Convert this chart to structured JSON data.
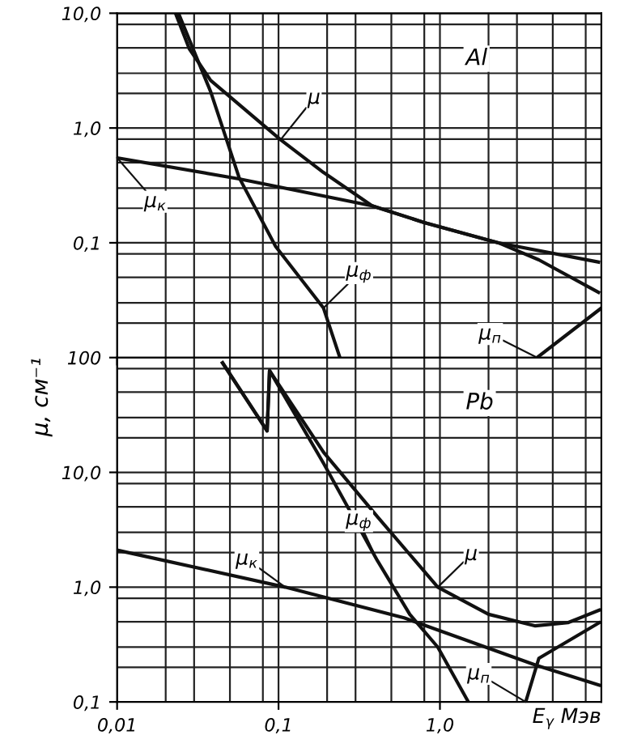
{
  "chart_data": [
    {
      "type": "line",
      "title": "Al",
      "log": "xy",
      "grid": true,
      "legend": false,
      "tick_labels": "y",
      "line_style": "solid",
      "marker": "none",
      "xlim": [
        0.01,
        10
      ],
      "xticks": [
        {
          "value": 0.01,
          "label": null
        },
        {
          "value": 0.1,
          "label": null
        },
        {
          "value": 1,
          "label": null
        }
      ],
      "ylim": [
        0.01,
        10
      ],
      "yticks": [
        {
          "value": 0.1,
          "label": "0,1"
        },
        {
          "value": 1,
          "label": "1,0"
        },
        {
          "value": 10,
          "label": "10,0"
        }
      ],
      "series": [
        {
          "color": "#111111",
          "x": [
            0.023,
            0.028,
            0.038,
            0.103,
            0.19,
            0.38,
            0.8,
            2.3,
            4.1,
            9.6
          ],
          "values": [
            10,
            4.9,
            2.6,
            0.79,
            0.41,
            0.21,
            0.15,
            0.1,
            0.071,
            0.037
          ]
        },
        {
          "color": "#111111",
          "x": [
            0.01,
            0.057,
            0.38,
            0.8,
            2.3,
            9.6
          ],
          "values": [
            0.55,
            0.36,
            0.21,
            0.15,
            0.1,
            0.068
          ]
        },
        {
          "color": "#111111",
          "x": [
            0.024,
            0.038,
            0.057,
            0.096,
            0.19,
            0.24
          ],
          "values": [
            10,
            2.07,
            0.37,
            0.093,
            0.027,
            0.01
          ]
        },
        {
          "color": "#111111",
          "x": [
            4.0,
            10
          ],
          "values": [
            0.01,
            0.027
          ]
        }
      ],
      "annotations": [
        {
          "text": "μ",
          "x": 0.103,
          "y": 0.79
        },
        {
          "text": "μ$_{к}$",
          "x": 0.01,
          "y": 0.55
        },
        {
          "text": "μ$_{ф}$",
          "x": 0.19,
          "y": 0.027
        },
        {
          "text": "μ$_{п}$",
          "x": 4.0,
          "y": 0.01
        }
      ]
    },
    {
      "type": "line",
      "title": "Pb",
      "log": "xy",
      "grid": true,
      "legend": false,
      "line_style": "solid",
      "marker": "none",
      "xlabel": "E$_{γ}$ Мэв",
      "ylabel": "μ, см⁻¹",
      "xlim": [
        0.01,
        10
      ],
      "xticks": [
        {
          "value": 0.01,
          "label": "0,01"
        },
        {
          "value": 0.1,
          "label": "0,1"
        },
        {
          "value": 1,
          "label": "1,0"
        }
      ],
      "ylim": [
        0.1,
        100
      ],
      "yticks": [
        {
          "value": 0.1,
          "label": "0,1"
        },
        {
          "value": 1,
          "label": "1,0"
        },
        {
          "value": 10,
          "label": "10,0"
        },
        100
      ],
      "series": [
        {
          "color": "#111111",
          "x": [
            0.045,
            0.085,
            0.088,
            0.19,
            0.41,
            0.97,
            2.0,
            3.9,
            6.2,
            9.7
          ],
          "values": [
            90,
            23,
            77,
            15,
            4.1,
            1.0,
            0.58,
            0.46,
            0.49,
            0.63
          ]
        },
        {
          "color": "#111111",
          "x": [
            0.01,
            0.11,
            0.6,
            3.9,
            9.7
          ],
          "values": [
            2.1,
            1.0,
            0.54,
            0.21,
            0.14
          ]
        },
        {
          "color": "#111111",
          "x": [
            0.045,
            0.085,
            0.088,
            0.19,
            0.41,
            0.65,
            0.97,
            1.5
          ],
          "values": [
            90,
            23,
            77,
            12,
            1.7,
            0.58,
            0.3,
            0.1
          ]
        },
        {
          "color": "#111111",
          "x": [
            3.4,
            4.1,
            9.7
          ],
          "values": [
            0.1,
            0.24,
            0.49
          ]
        }
      ],
      "annotations": [
        {
          "text": "μ$_{к}$",
          "x": 0.11,
          "y": 1.0
        },
        {
          "text": "μ$_{ф}$",
          "x": 0.41,
          "y": 1.7
        },
        {
          "text": "μ",
          "x": 0.97,
          "y": 1.0
        },
        {
          "text": "μ$_{п}$",
          "x": 3.4,
          "y": 0.1
        }
      ]
    }
  ]
}
